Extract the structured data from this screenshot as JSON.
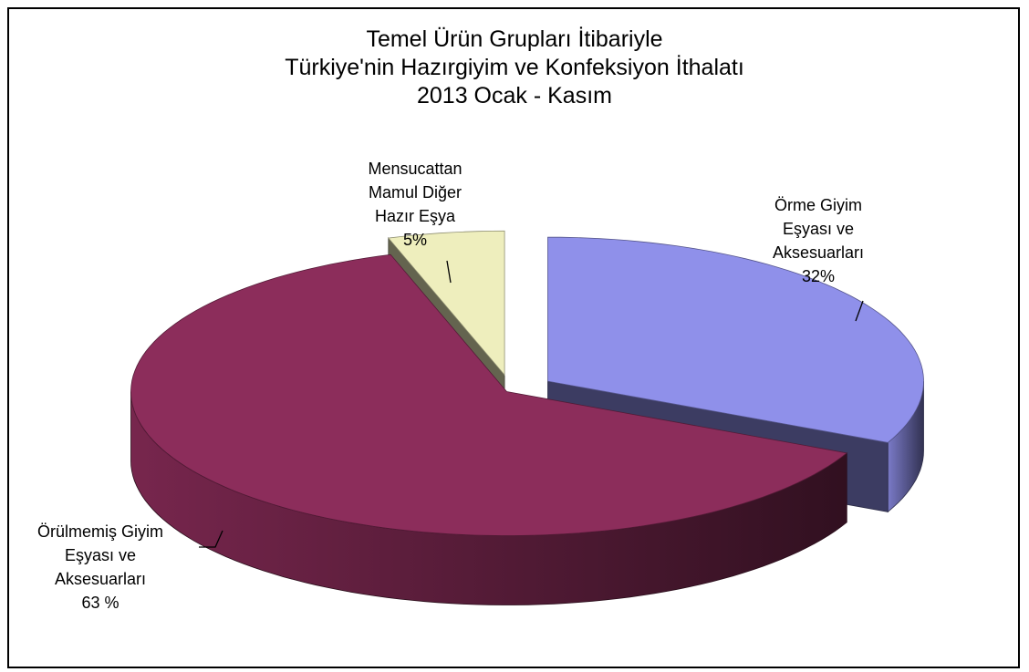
{
  "chart_data": {
    "type": "pie",
    "title": "Temel Ürün Grupları İtibariyle\nTürkiye'nin Hazırgiyim ve Konfeksiyon İthalatı\n2013 Ocak - Kasım",
    "categories": [
      "Örme Giyim\nEşyası ve\nAksesuarları",
      "Örülmemiş Giyim\nEşyası ve\nAksesuarları",
      "Mensucattan\nMamul Diğer\nHazır Eşya"
    ],
    "values": [
      32,
      63,
      5
    ],
    "value_labels": [
      "32%",
      "63 %",
      "5%"
    ],
    "colors": [
      "#8f90ea",
      "#8c2d5b",
      "#eeeebd"
    ]
  }
}
